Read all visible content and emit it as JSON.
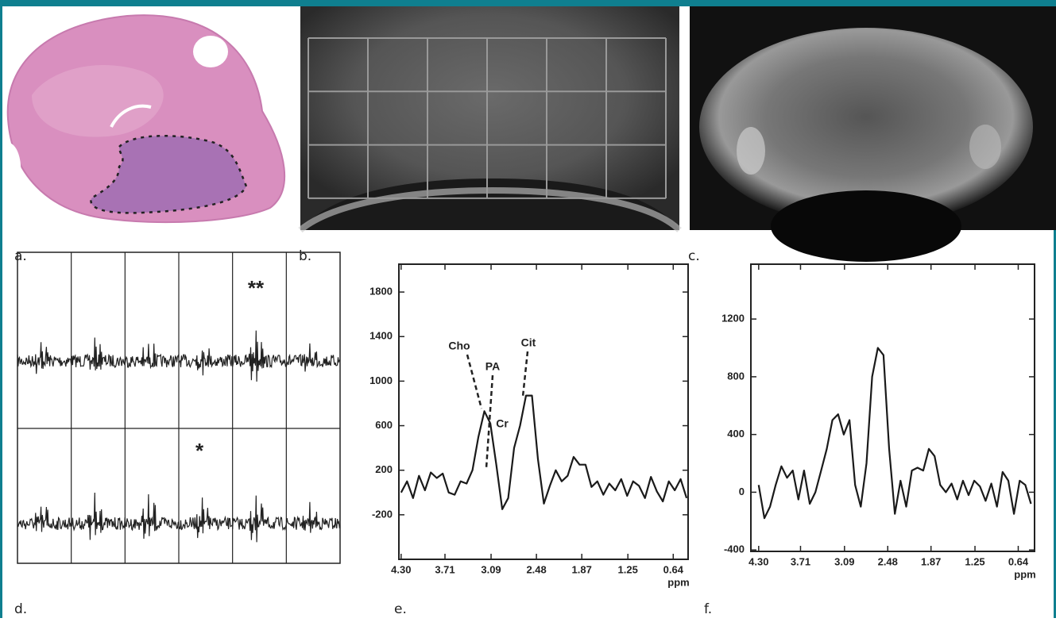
{
  "figure": {
    "panel_labels": [
      "a.",
      "b.",
      "c.",
      "d.",
      "e.",
      "f."
    ],
    "d_annotations": [
      "**",
      "*"
    ]
  },
  "chart_data": [
    {
      "type": "line",
      "x": [
        4.3,
        4.22,
        4.14,
        4.06,
        3.98,
        3.9,
        3.82,
        3.74,
        3.66,
        3.58,
        3.5,
        3.42,
        3.34,
        3.26,
        3.18,
        3.1,
        3.02,
        2.94,
        2.86,
        2.78,
        2.7,
        2.62,
        2.54,
        2.46,
        2.38,
        2.3,
        2.22,
        2.14,
        2.06,
        1.98,
        1.9,
        1.82,
        1.74,
        1.66,
        1.58,
        1.5,
        1.42,
        1.34,
        1.26,
        1.18,
        1.1,
        1.02,
        0.94,
        0.86,
        0.78,
        0.7,
        0.62,
        0.54,
        0.46
      ],
      "xlabel": "ppm",
      "xlim": [
        4.33,
        0.44
      ],
      "xticks": [
        {
          "value": 4.3,
          "label": "4.30"
        },
        3.71,
        3.09,
        2.48,
        1.87,
        1.25,
        0.64
      ],
      "ylim": [
        -600,
        2050
      ],
      "yticks": [
        -200,
        200,
        600,
        1000,
        1400,
        1800
      ],
      "series": [
        {
          "color": "#1a1a1a",
          "values": [
            0,
            100,
            -50,
            150,
            20,
            180,
            130,
            170,
            0,
            -20,
            100,
            80,
            200,
            500,
            730,
            620,
            250,
            -150,
            -50,
            400,
            600,
            870,
            870,
            300,
            -100,
            60,
            200,
            100,
            150,
            320,
            250,
            250,
            50,
            100,
            -20,
            80,
            20,
            120,
            -30,
            100,
            60,
            -50,
            140,
            10,
            -80,
            100,
            20,
            120,
            -50
          ]
        }
      ],
      "annotations": [
        "Cho",
        "PA",
        "Cr",
        "Cit"
      ]
    },
    {
      "type": "line",
      "x": [
        4.3,
        4.22,
        4.14,
        4.06,
        3.98,
        3.9,
        3.82,
        3.74,
        3.66,
        3.58,
        3.5,
        3.42,
        3.34,
        3.26,
        3.18,
        3.1,
        3.02,
        2.94,
        2.86,
        2.78,
        2.7,
        2.62,
        2.54,
        2.46,
        2.38,
        2.3,
        2.22,
        2.14,
        2.06,
        1.98,
        1.9,
        1.82,
        1.74,
        1.66,
        1.58,
        1.5,
        1.42,
        1.34,
        1.26,
        1.18,
        1.1,
        1.02,
        0.94,
        0.86,
        0.78,
        0.7,
        0.62,
        0.54,
        0.46
      ],
      "xlabel": "ppm",
      "xlim": [
        4.41,
        0.41
      ],
      "xticks": [
        {
          "value": 4.3,
          "label": "4.30"
        },
        3.71,
        3.09,
        2.48,
        1.87,
        1.25,
        0.64
      ],
      "ylim": [
        -410,
        1580
      ],
      "yticks": [
        -400,
        0,
        400,
        800,
        1200
      ],
      "series": [
        {
          "color": "#1a1a1a",
          "values": [
            50,
            -180,
            -100,
            50,
            180,
            100,
            150,
            -50,
            150,
            -80,
            0,
            150,
            300,
            500,
            540,
            400,
            500,
            50,
            -100,
            200,
            800,
            1000,
            950,
            300,
            -150,
            80,
            -100,
            150,
            170,
            150,
            300,
            250,
            50,
            0,
            60,
            -50,
            80,
            -20,
            80,
            40,
            -60,
            60,
            -100,
            140,
            80,
            -150,
            80,
            50,
            -80
          ]
        }
      ]
    }
  ]
}
